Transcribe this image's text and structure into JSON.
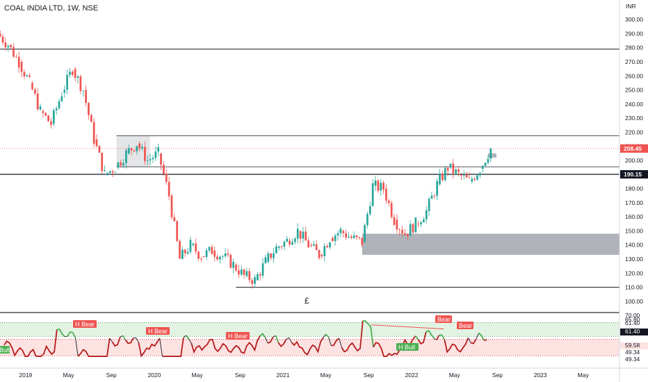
{
  "header": {
    "title": "COAL INDIA LTD, 1W, NSE"
  },
  "chart_data": [
    {
      "type": "candlestick",
      "currency_label": "INR",
      "ylim": [
        95,
        305
      ],
      "y_ticks": [
        "300.00",
        "290.00",
        "280.00",
        "270.00",
        "260.00",
        "250.00",
        "240.00",
        "230.00",
        "220.00",
        "210.00",
        "200.00",
        "190.00",
        "180.00",
        "170.00",
        "160.00",
        "150.00",
        "140.00",
        "130.00",
        "120.00",
        "110.00",
        "100.00"
      ],
      "x_tick_labels": [
        "2019",
        "May",
        "Sep",
        "2020",
        "May",
        "Sep",
        "2021",
        "May",
        "Sep",
        "2022",
        "May",
        "Sep",
        "2023",
        "May"
      ],
      "last_price": "208.45",
      "marked_level": "190.15",
      "colors": {
        "up": "#26a69a",
        "down": "#ef5350",
        "zone": "#9598a1",
        "level": "#131722"
      },
      "horizontal_levels": [
        279,
        217.5,
        195.5,
        190.15,
        110
      ],
      "zones": [
        {
          "from": "2021-Aug",
          "to": "end",
          "low": 133,
          "high": 148
        },
        {
          "from": "2022-Aug",
          "to": "2022-Sep",
          "low": 202,
          "high": 205
        }
      ],
      "annotation": "£",
      "close_series": [
        {
          "x": "2018-Nov",
          "close": 282
        },
        {
          "x": "2018-Dec",
          "close": 270
        },
        {
          "x": "2019-Jan",
          "close": 255
        },
        {
          "x": "2019-Feb",
          "close": 235
        },
        {
          "x": "2019-Mar",
          "close": 226
        },
        {
          "x": "2019-Apr",
          "close": 248
        },
        {
          "x": "2019-May",
          "close": 265
        },
        {
          "x": "2019-Jun",
          "close": 250
        },
        {
          "x": "2019-Jul",
          "close": 215
        },
        {
          "x": "2019-Aug",
          "close": 190
        },
        {
          "x": "2019-Sep",
          "close": 195
        },
        {
          "x": "2019-Oct",
          "close": 205
        },
        {
          "x": "2019-Nov",
          "close": 212
        },
        {
          "x": "2019-Dec",
          "close": 200
        },
        {
          "x": "2020-Jan",
          "close": 205
        },
        {
          "x": "2020-Feb",
          "close": 175
        },
        {
          "x": "2020-Mar",
          "close": 130
        },
        {
          "x": "2020-Apr",
          "close": 140
        },
        {
          "x": "2020-May",
          "close": 132
        },
        {
          "x": "2020-Jun",
          "close": 136
        },
        {
          "x": "2020-Jul",
          "close": 132
        },
        {
          "x": "2020-Aug",
          "close": 126
        },
        {
          "x": "2020-Sep",
          "close": 118
        },
        {
          "x": "2020-Oct",
          "close": 115
        },
        {
          "x": "2020-Nov",
          "close": 128
        },
        {
          "x": "2020-Dec",
          "close": 138
        },
        {
          "x": "2021-Jan",
          "close": 143
        },
        {
          "x": "2021-Feb",
          "close": 150
        },
        {
          "x": "2021-Mar",
          "close": 140
        },
        {
          "x": "2021-Apr",
          "close": 133
        },
        {
          "x": "2021-May",
          "close": 145
        },
        {
          "x": "2021-Jun",
          "close": 150
        },
        {
          "x": "2021-Jul",
          "close": 145
        },
        {
          "x": "2021-Aug",
          "close": 142
        },
        {
          "x": "2021-Sep",
          "close": 182
        },
        {
          "x": "2021-Oct",
          "close": 180
        },
        {
          "x": "2021-Nov",
          "close": 158
        },
        {
          "x": "2021-Dec",
          "close": 148
        },
        {
          "x": "2022-Jan",
          "close": 155
        },
        {
          "x": "2022-Feb",
          "close": 164
        },
        {
          "x": "2022-Mar",
          "close": 183
        },
        {
          "x": "2022-Apr",
          "close": 195
        },
        {
          "x": "2022-May",
          "close": 190
        },
        {
          "x": "2022-Jun",
          "close": 185
        },
        {
          "x": "2022-Jul",
          "close": 194
        },
        {
          "x": "2022-Aug",
          "close": 208.45
        }
      ]
    },
    {
      "type": "line",
      "indicator": "rsi_divergence",
      "ylim": [
        43,
        74
      ],
      "bands": {
        "upper_high": 70,
        "upper_low": 61.4,
        "lower_high": 59.58,
        "lower_low": 49.34
      },
      "axis_labels": [
        "70.00",
        "65.80",
        "61.40",
        "61.40",
        "59.58",
        "49.34",
        "49.34"
      ],
      "highlight_labels": [
        "61.40",
        "59.58",
        "49.34"
      ],
      "colors": {
        "line": "#131722",
        "bull": "#4caf50",
        "bear": "#b71c1c",
        "upper_fill": "#e3f3e3",
        "lower_fill": "#fde2e2"
      },
      "signals": [
        {
          "label": "Bull",
          "kind": "bull"
        },
        {
          "label": "H Bear",
          "kind": "bear"
        },
        {
          "label": "H Bear",
          "kind": "bear"
        },
        {
          "label": "H Bear",
          "kind": "bear"
        },
        {
          "label": "Bear",
          "kind": "bear"
        },
        {
          "label": "Bear",
          "kind": "bear"
        },
        {
          "label": "H Bull",
          "kind": "bull"
        }
      ]
    }
  ]
}
